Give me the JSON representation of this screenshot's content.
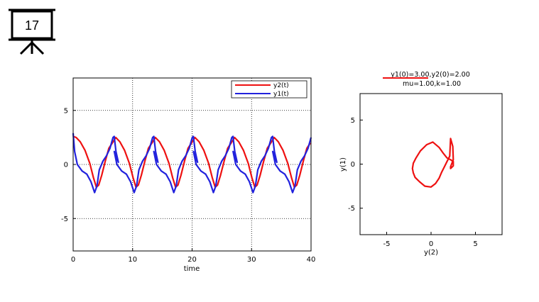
{
  "slide": {
    "number": "17",
    "icon": "presentation-board-icon"
  },
  "chart_data": [
    {
      "type": "line",
      "xlabel": "time",
      "ylabel": "",
      "xlim": [
        0,
        40
      ],
      "ylim": [
        -8,
        8
      ],
      "xticks": [
        0,
        10,
        20,
        30,
        40
      ],
      "yticks": [
        -5,
        0,
        5
      ],
      "grid": "dotted",
      "legend_position": "top-right",
      "period": 6.66,
      "series": [
        {
          "name": "y2(t)",
          "color": "#ee1111",
          "x": [
            0,
            0.5,
            1.2,
            2.0,
            2.8,
            3.4,
            3.9,
            4.3,
            4.8,
            5.4,
            6.0,
            6.6
          ],
          "values": [
            2.6,
            2.5,
            2.1,
            1.3,
            0.1,
            -1.2,
            -2.1,
            -1.9,
            -1.0,
            0.3,
            1.5,
            2.0
          ]
        },
        {
          "name": "y1(t)",
          "color": "#2222dd",
          "x": [
            0,
            0.25,
            0.7,
            1.5,
            2.3,
            3.0,
            3.6,
            4.0,
            4.4,
            5.0,
            5.6,
            6.2,
            6.7,
            6.9,
            7.2,
            7.6
          ],
          "values": [
            2.9,
            1.2,
            0.0,
            -0.6,
            -0.9,
            -1.6,
            -2.6,
            -2.0,
            -0.5,
            0.3,
            0.8,
            1.5,
            2.5,
            2.6,
            1.2,
            0.2
          ]
        }
      ]
    },
    {
      "type": "line",
      "title": "y1(0)=3.00,y2(0)=2.00",
      "subtitle": "mu=1.00,k=1.00",
      "xlabel": "y(2)",
      "ylabel": "y(1)",
      "xlim": [
        -8,
        8
      ],
      "ylim": [
        -8,
        8
      ],
      "xticks": [
        -5,
        0,
        5
      ],
      "yticks": [
        -5,
        0,
        5
      ],
      "grid": "off",
      "series": [
        {
          "name": "",
          "color": "#ee1111",
          "x": [
            2.2,
            2.45,
            2.5,
            2.2,
            2.2,
            2.5,
            2.5,
            2.2,
            1.8,
            1.4,
            0.9,
            0.2,
            -0.5,
            -1.2,
            -1.7,
            -2.0,
            -2.1,
            -2.0,
            -1.8,
            -1.3,
            -0.7,
            0.0,
            0.5,
            0.9,
            1.2,
            1.5,
            1.8,
            2.1
          ],
          "y": [
            2.9,
            2.0,
            0.5,
            -0.3,
            -0.5,
            -0.2,
            0.3,
            0.5,
            0.7,
            1.2,
            1.9,
            2.5,
            2.2,
            1.5,
            0.7,
            0.1,
            -0.5,
            -1.0,
            -1.5,
            -2.0,
            -2.5,
            -2.6,
            -2.2,
            -1.6,
            -0.9,
            -0.3,
            0.3,
            0.9
          ]
        }
      ]
    }
  ]
}
